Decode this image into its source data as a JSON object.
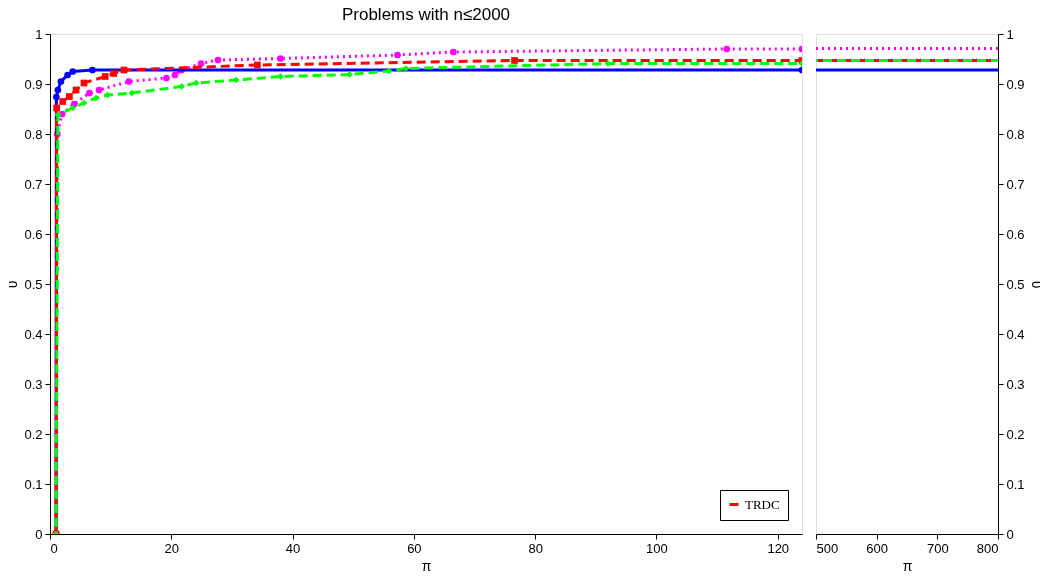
{
  "chart_data": [
    {
      "type": "line",
      "title": "Problems with n≤2000",
      "xlabel": "π",
      "ylabel": "υ",
      "xlim": [
        0,
        124
      ],
      "xticks": [
        0,
        20,
        40,
        60,
        80,
        100,
        120
      ],
      "ylim": [
        0,
        1
      ],
      "yticks": [
        0,
        0.1,
        0.2,
        0.3,
        0.4,
        0.5,
        0.6,
        0.7,
        0.8,
        0.9,
        1
      ],
      "grid": false,
      "legend": "bottom right",
      "series": [
        {
          "color": "#ff00ff",
          "marker": "circle",
          "line_style": "dotted",
          "x": [
            1,
            1.2,
            2,
            4,
            6.5,
            8.1,
            13,
            19.2,
            20.6,
            21.7,
            24.9,
            27.7,
            38,
            57.3,
            66.5,
            111.6,
            124
          ],
          "values": [
            0,
            0.8,
            0.84,
            0.86,
            0.882,
            0.888,
            0.905,
            0.912,
            0.918,
            0.928,
            0.941,
            0.948,
            0.951,
            0.958,
            0.964,
            0.97,
            0.97
          ]
        },
        {
          "color": "#0000ff",
          "marker": "circle",
          "line_style": "solid",
          "x": [
            1,
            1.05,
            1.3,
            1.8,
            2.9,
            3.75,
            7,
            124
          ],
          "values": [
            0,
            0.874,
            0.888,
            0.905,
            0.918,
            0.925,
            0.928,
            0.928
          ]
        },
        {
          "name": "TRDC",
          "color": "#ff0000",
          "marker": "square",
          "line_style": "dashed",
          "x": [
            1,
            1.1,
            2.1,
            3.2,
            4.3,
            5.6,
            9.1,
            10.5,
            12.2,
            34.2,
            76.6,
            124
          ],
          "values": [
            0,
            0.852,
            0.865,
            0.875,
            0.888,
            0.902,
            0.915,
            0.921,
            0.928,
            0.938,
            0.947,
            0.947
          ]
        },
        {
          "color": "#00ff00",
          "marker": "diamond",
          "line_style": "dashed",
          "x": [
            1,
            1.3,
            3.75,
            5.6,
            7.6,
            9.5,
            13.5,
            21.7,
            24.1,
            30.7,
            38,
            49.4,
            55.9,
            58.7,
            92,
            124
          ],
          "values": [
            0,
            0.838,
            0.852,
            0.862,
            0.872,
            0.878,
            0.882,
            0.895,
            0.902,
            0.908,
            0.915,
            0.919,
            0.926,
            0.931,
            0.941,
            0.941
          ]
        }
      ]
    },
    {
      "type": "line",
      "xlabel": "π",
      "ylabel": "υ",
      "xlim": [
        500,
        800
      ],
      "xticks": [
        500,
        600,
        700,
        800
      ],
      "ylim": [
        0,
        1
      ],
      "yticks": [
        0,
        0.1,
        0.2,
        0.3,
        0.4,
        0.5,
        0.6,
        0.7,
        0.8,
        0.9,
        1
      ],
      "grid": false,
      "series": [
        {
          "color": "#ff00ff",
          "marker": "none",
          "line_style": "dotted",
          "x": [
            500,
            800
          ],
          "values": [
            0.971,
            0.971
          ]
        },
        {
          "color": "#0000ff",
          "marker": "none",
          "line_style": "solid",
          "x": [
            500,
            800
          ],
          "values": [
            0.928,
            0.928
          ]
        },
        {
          "color": "#ff0000",
          "marker": "none",
          "line_style": "dashed",
          "x": [
            500,
            800
          ],
          "values": [
            0.947,
            0.947
          ]
        },
        {
          "color": "#00ff00",
          "marker": "none",
          "line_style": "dashed",
          "x": [
            500,
            800
          ],
          "values": [
            0.947,
            0.947
          ]
        }
      ]
    }
  ]
}
